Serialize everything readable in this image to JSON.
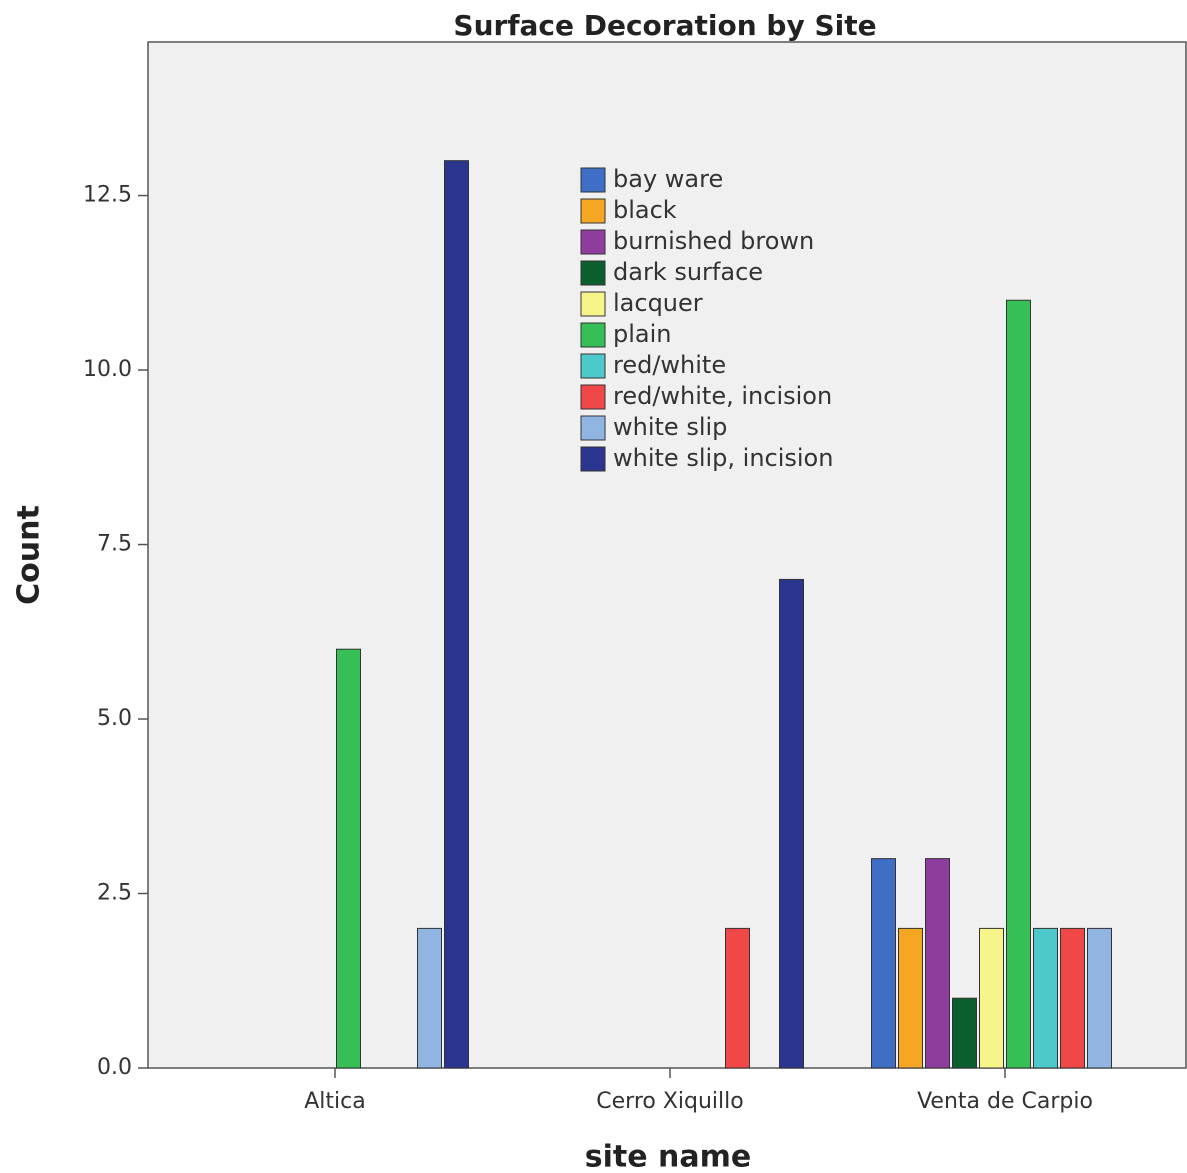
{
  "chart_data": {
    "type": "bar",
    "title": "Surface Decoration by Site",
    "x_label": "site name",
    "y_label": "Count",
    "categories": [
      "Altica",
      "Cerro Xiquillo",
      "Venta de Carpio"
    ],
    "series": [
      {
        "name": "bay ware",
        "color": "#3e6ec5",
        "values": [
          null,
          null,
          3
        ]
      },
      {
        "name": "black",
        "color": "#f5a623",
        "values": [
          null,
          null,
          2
        ]
      },
      {
        "name": "burnished brown",
        "color": "#8e3d9e",
        "values": [
          null,
          null,
          3
        ]
      },
      {
        "name": "dark surface",
        "color": "#0b5e2e",
        "values": [
          null,
          null,
          1
        ]
      },
      {
        "name": "lacquer",
        "color": "#f7f48a",
        "values": [
          null,
          null,
          2
        ]
      },
      {
        "name": "plain",
        "color": "#35bf55",
        "values": [
          6,
          null,
          11
        ]
      },
      {
        "name": "red/white",
        "color": "#4dc9cc",
        "values": [
          null,
          null,
          2
        ]
      },
      {
        "name": "red/white, incision",
        "color": "#f04848",
        "values": [
          null,
          2,
          2
        ]
      },
      {
        "name": "white slip",
        "color": "#8fb5e0",
        "values": [
          2,
          null,
          2
        ]
      },
      {
        "name": "white slip, incision",
        "color": "#2a3590",
        "values": [
          13,
          7,
          null
        ]
      }
    ],
    "ylim": [
      0,
      14.7
    ],
    "yticks": [
      {
        "value": 0,
        "label": "0.0"
      },
      2.5,
      {
        "value": 5,
        "label": "5.0"
      },
      7.5,
      {
        "value": 10,
        "label": "10.0"
      },
      12.5
    ]
  }
}
